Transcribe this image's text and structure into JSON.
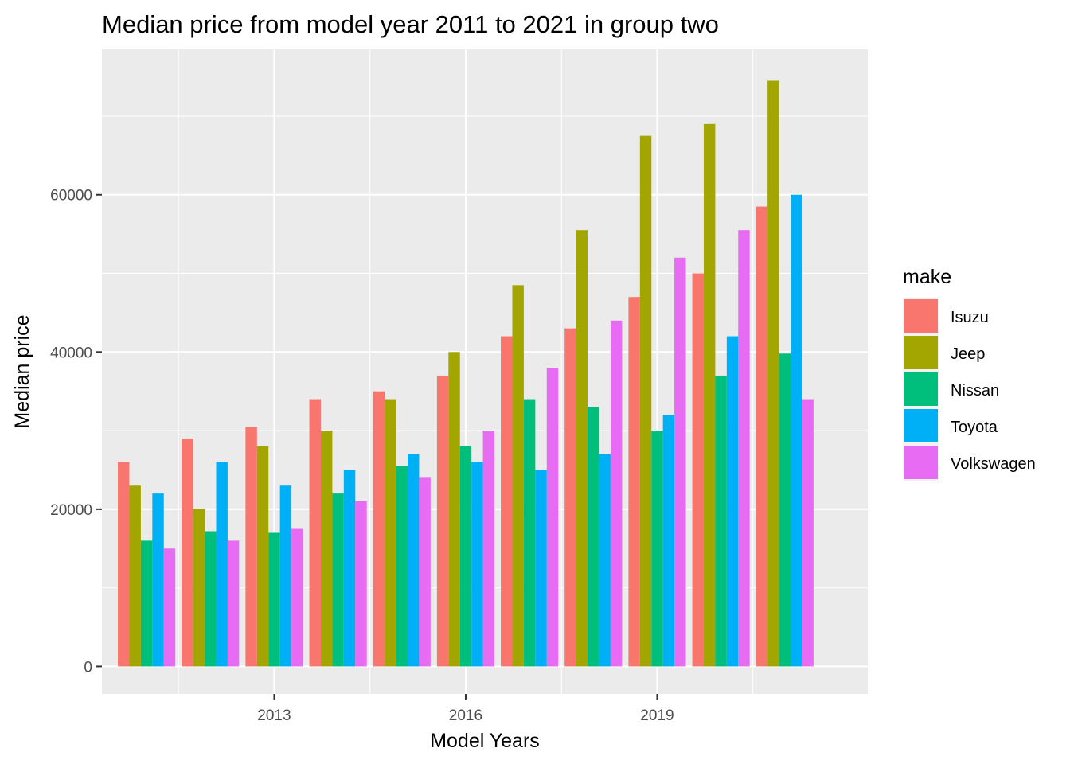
{
  "chart_data": {
    "type": "bar",
    "title": "Median price from model year 2011 to 2021 in group two",
    "xlabel": "Model Years",
    "ylabel": "Median price",
    "x": [
      2011,
      2012,
      2013,
      2014,
      2015,
      2016,
      2017,
      2018,
      2019,
      2020,
      2021
    ],
    "x_ticks": [
      "2013",
      "2016",
      "2019"
    ],
    "y_ticks": [
      "0",
      "20000",
      "40000",
      "60000"
    ],
    "ylim": [
      -3500,
      78500
    ],
    "xlim": [
      2010.3,
      2022.3
    ],
    "grid": true,
    "legend": {
      "title": "make",
      "position": "right"
    },
    "series": [
      {
        "name": "Isuzu",
        "color": "#F8766D",
        "values": [
          26000,
          29000,
          30500,
          34000,
          35000,
          37000,
          42000,
          43000,
          47000,
          50000,
          58500
        ]
      },
      {
        "name": "Jeep",
        "color": "#A3A500",
        "values": [
          23000,
          20000,
          28000,
          30000,
          34000,
          40000,
          48500,
          55500,
          67500,
          69000,
          74500
        ]
      },
      {
        "name": "Nissan",
        "color": "#00BF7D",
        "values": [
          16000,
          17200,
          17000,
          22000,
          25500,
          28000,
          34000,
          33000,
          30000,
          37000,
          39800
        ]
      },
      {
        "name": "Toyota",
        "color": "#00B0F6",
        "values": [
          22000,
          26000,
          23000,
          25000,
          27000,
          26000,
          25000,
          27000,
          32000,
          42000,
          60000
        ]
      },
      {
        "name": "Volkswagen",
        "color": "#E76BF3",
        "values": [
          15000,
          16000,
          17500,
          21000,
          24000,
          30000,
          38000,
          44000,
          52000,
          55500,
          34000
        ]
      }
    ]
  }
}
